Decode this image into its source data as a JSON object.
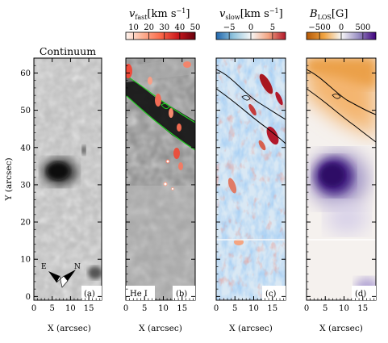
{
  "figure": {
    "y_axis_label": "Y (arcsec)",
    "x_axis_label": "X (arcsec)",
    "x_ticks": [
      "0",
      "5",
      "10",
      "15"
    ],
    "y_ticks": [
      "0",
      "10",
      "20",
      "30",
      "40",
      "50",
      "60"
    ],
    "compass": {
      "east": "E",
      "north": "N"
    }
  },
  "panels": [
    {
      "id": "a",
      "tag": "(a)",
      "title": "Continuum",
      "colormap": "gray"
    },
    {
      "id": "b",
      "tag": "(b)",
      "inner_label": "He I",
      "colormap": "gray+red"
    },
    {
      "id": "c",
      "tag": "(c)",
      "colormap": "blue-white-red"
    },
    {
      "id": "d",
      "tag": "(d)",
      "colormap": "orange-white-purple"
    }
  ],
  "colorbars": [
    {
      "panel": "b",
      "quantity": "v",
      "subscript": "fast",
      "unit": "[km s",
      "unit_exp": "−1",
      "unit_close": "]",
      "ticks": [
        "10",
        "20",
        "30",
        "40",
        "50"
      ],
      "range": [
        5,
        50
      ],
      "colors": [
        "#fff5f0",
        "#fcae91",
        "#fb6a4a",
        "#cb181d",
        "#67000d"
      ]
    },
    {
      "panel": "c",
      "quantity": "v",
      "subscript": "slow",
      "unit": "[km s",
      "unit_exp": "−1",
      "unit_close": "]",
      "ticks": [
        "−5",
        "0",
        "5"
      ],
      "range": [
        -8,
        8
      ],
      "colors": [
        "#2166ac",
        "#92c5de",
        "#f7f7f7",
        "#f4a582",
        "#b2182b"
      ]
    },
    {
      "panel": "d",
      "quantity": "B",
      "subscript": "LOS",
      "unit": "[G]",
      "unit_exp": "",
      "unit_close": "",
      "ticks": [
        "−500",
        "0",
        "500"
      ],
      "range": [
        -800,
        800
      ],
      "colors": [
        "#b35806",
        "#f1a340",
        "#f7f7f7",
        "#998ec3",
        "#3f007d"
      ]
    }
  ],
  "colors": {
    "contour_green": "#22cc22",
    "contour_black": "#000000"
  }
}
